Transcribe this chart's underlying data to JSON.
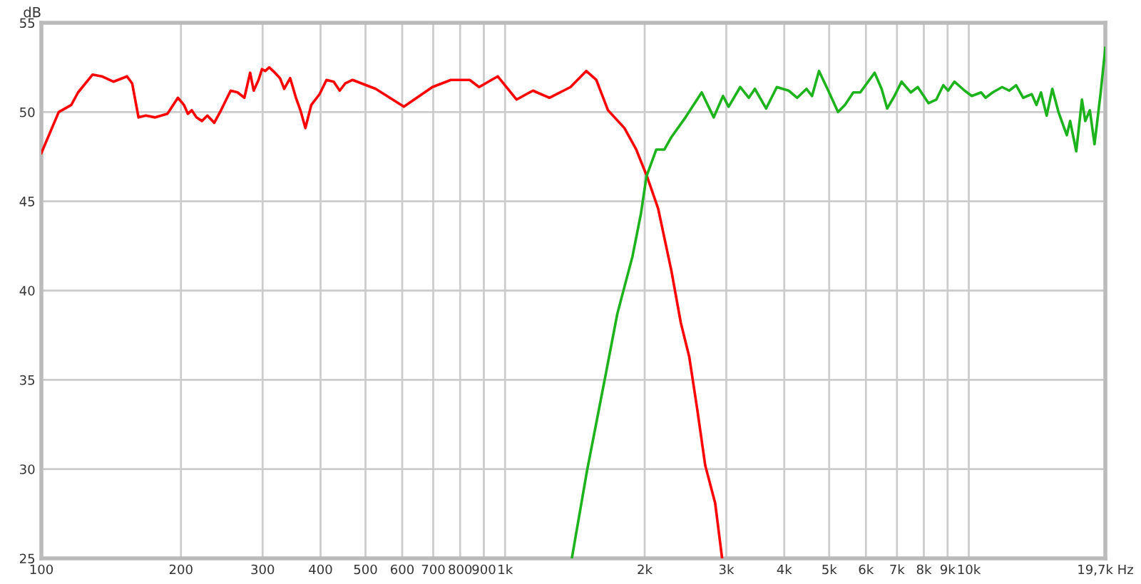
{
  "chart_data": {
    "type": "line",
    "ylabel": "dB",
    "log": "x",
    "grid": true,
    "marker": "none",
    "line_style": "solid",
    "xlim": [
      100,
      19700
    ],
    "ylim": [
      25,
      55
    ],
    "xticks": [
      100,
      200,
      300,
      400,
      500,
      600,
      700,
      800,
      900,
      {
        "value": 1000,
        "label": "1k"
      },
      {
        "value": 2000,
        "label": "2k"
      },
      {
        "value": 3000,
        "label": "3k"
      },
      {
        "value": 4000,
        "label": "4k"
      },
      {
        "value": 5000,
        "label": "5k"
      },
      {
        "value": 6000,
        "label": "6k"
      },
      {
        "value": 7000,
        "label": "7k"
      },
      {
        "value": 8000,
        "label": "8k"
      },
      {
        "value": 9000,
        "label": "9k"
      },
      {
        "value": 10000,
        "label": "10k"
      },
      {
        "value": 19700,
        "label": "19,7k Hz"
      }
    ],
    "yticks": [
      25,
      30,
      35,
      40,
      45,
      50,
      55
    ],
    "series": [
      {
        "color": "#ff0000",
        "x": [
          100,
          109,
          116,
          120,
          129,
          135,
          143,
          153,
          157,
          162,
          168,
          176,
          187,
          197,
          203,
          207,
          211,
          216,
          222,
          228,
          236,
          244,
          256,
          265,
          274,
          282,
          287,
          294,
          299,
          304,
          310,
          319,
          327,
          334,
          344,
          354,
          362,
          371,
          382,
          398,
          412,
          427,
          440,
          452,
          469,
          526,
          605,
          697,
          764,
          839,
          879,
          964,
          1059,
          1148,
          1246,
          1384,
          1496,
          1573,
          1667,
          1809,
          1918,
          2023,
          2138,
          2284,
          2393,
          2495,
          2595,
          2702,
          2838,
          2938
        ],
        "values": [
          47.7,
          50.0,
          50.4,
          51.1,
          52.1,
          52.0,
          51.7,
          52.0,
          51.6,
          49.7,
          49.8,
          49.7,
          49.9,
          50.8,
          50.4,
          49.9,
          50.1,
          49.7,
          49.5,
          49.8,
          49.4,
          50.1,
          51.2,
          51.1,
          50.8,
          52.2,
          51.2,
          51.8,
          52.4,
          52.3,
          52.5,
          52.2,
          51.9,
          51.3,
          51.9,
          50.8,
          50.1,
          49.1,
          50.4,
          51.0,
          51.8,
          51.7,
          51.2,
          51.6,
          51.8,
          51.3,
          50.3,
          51.4,
          51.8,
          51.8,
          51.4,
          52.0,
          50.7,
          51.2,
          50.8,
          51.4,
          52.3,
          51.8,
          50.1,
          49.1,
          47.9,
          46.4,
          44.6,
          41.1,
          38.2,
          36.3,
          33.4,
          30.2,
          28.1,
          25.0
        ]
      },
      {
        "color": "#1db31d",
        "x": [
          1393,
          1502,
          1648,
          1746,
          1882,
          1963,
          2018,
          2119,
          2206,
          2284,
          2449,
          2655,
          2818,
          2951,
          3034,
          3214,
          3355,
          3457,
          3656,
          3855,
          4088,
          4266,
          4467,
          4592,
          4753,
          4977,
          5224,
          5408,
          5636,
          5834,
          6266,
          6486,
          6668,
          6914,
          7161,
          7499,
          7762,
          8185,
          8511,
          8810,
          9026,
          9311,
          9796,
          10150,
          10630,
          10870,
          11260,
          11800,
          12220,
          12650,
          13100,
          13670,
          13990,
          14310,
          14720,
          15140,
          15610,
          16270,
          16540,
          17050,
          17540,
          17830,
          18240,
          18670,
          19250,
          19700
        ],
        "values": [
          25.0,
          29.9,
          35.3,
          38.7,
          41.9,
          44.3,
          46.4,
          47.9,
          47.9,
          48.6,
          49.7,
          51.1,
          49.7,
          50.9,
          50.3,
          51.4,
          50.8,
          51.3,
          50.2,
          51.4,
          51.2,
          50.8,
          51.3,
          50.9,
          52.3,
          51.2,
          50.0,
          50.4,
          51.1,
          51.1,
          52.2,
          51.3,
          50.2,
          50.9,
          51.7,
          51.1,
          51.4,
          50.5,
          50.7,
          51.5,
          51.2,
          51.7,
          51.2,
          50.9,
          51.1,
          50.8,
          51.1,
          51.4,
          51.2,
          51.5,
          50.8,
          51.0,
          50.4,
          51.1,
          49.8,
          51.3,
          50.0,
          48.7,
          49.5,
          47.8,
          50.7,
          49.5,
          50.1,
          48.2,
          51.1,
          53.6
        ]
      }
    ]
  }
}
